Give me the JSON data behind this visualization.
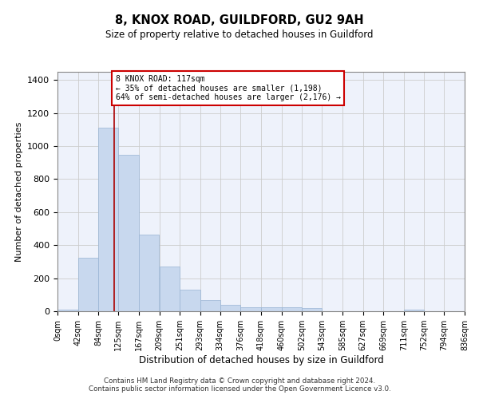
{
  "title": "8, KNOX ROAD, GUILDFORD, GU2 9AH",
  "subtitle": "Size of property relative to detached houses in Guildford",
  "xlabel": "Distribution of detached houses by size in Guildford",
  "ylabel": "Number of detached properties",
  "bar_color": "#c8d8ee",
  "bar_edge_color": "#99b4d4",
  "grid_color": "#cccccc",
  "background_color": "#eef2fb",
  "vline_x": 117,
  "vline_color": "#aa0000",
  "annotation_text": "8 KNOX ROAD: 117sqm\n← 35% of detached houses are smaller (1,198)\n64% of semi-detached houses are larger (2,176) →",
  "annotation_box_color": "#cc0000",
  "footer_line1": "Contains HM Land Registry data © Crown copyright and database right 2024.",
  "footer_line2": "Contains public sector information licensed under the Open Government Licence v3.0.",
  "bin_edges": [
    0,
    42,
    84,
    125,
    167,
    209,
    251,
    293,
    334,
    376,
    418,
    460,
    502,
    543,
    585,
    627,
    669,
    711,
    752,
    794,
    836
  ],
  "bin_labels": [
    "0sqm",
    "42sqm",
    "84sqm",
    "125sqm",
    "167sqm",
    "209sqm",
    "251sqm",
    "293sqm",
    "334sqm",
    "376sqm",
    "418sqm",
    "460sqm",
    "502sqm",
    "543sqm",
    "585sqm",
    "627sqm",
    "669sqm",
    "711sqm",
    "752sqm",
    "794sqm",
    "836sqm"
  ],
  "bar_heights": [
    10,
    325,
    1110,
    945,
    465,
    270,
    130,
    70,
    40,
    22,
    25,
    25,
    18,
    0,
    0,
    0,
    0,
    12,
    0,
    0
  ],
  "ylim": [
    0,
    1450
  ],
  "yticks": [
    0,
    200,
    400,
    600,
    800,
    1000,
    1200,
    1400
  ]
}
